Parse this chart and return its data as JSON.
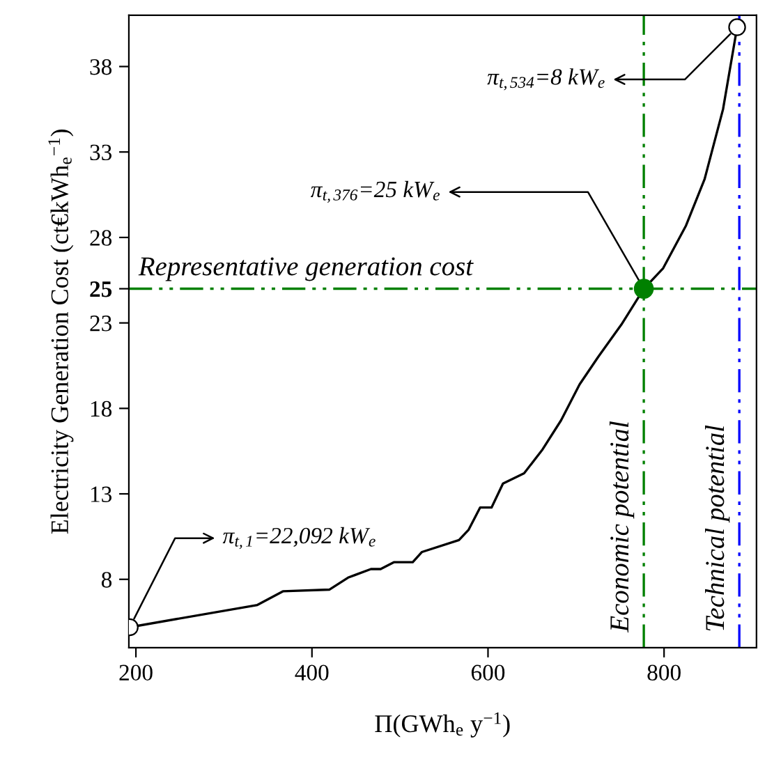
{
  "chart_data": {
    "type": "line",
    "xlabel": "Π(GWh$_{e}$ y$^{−1}$)",
    "ylabel": "Electricity Generation Cost (ct€kWh$_{e}$$^{−1}$)",
    "xlim": [
      192,
      905
    ],
    "xticks": [
      200,
      400,
      600,
      800
    ],
    "ylim": [
      4,
      41
    ],
    "yticks": [
      8,
      13,
      18,
      23,
      25,
      28,
      33,
      38
    ],
    "grid": false,
    "legend": false,
    "series": [
      {
        "color": "#000000",
        "marker": "none",
        "line_style": "solid",
        "x": [
          193,
          338,
          367,
          420,
          441,
          467,
          478,
          493,
          514.5,
          525,
          567,
          578,
          591,
          604,
          617,
          641,
          662,
          683,
          704,
          725,
          751.5,
          777,
          799,
          825,
          846,
          867,
          883
        ],
        "values": [
          5.2,
          6.5,
          7.3,
          7.4,
          8.1,
          8.6,
          8.6,
          9.0,
          9.0,
          9.6,
          10.3,
          10.9,
          12.2,
          12.2,
          13.6,
          14.2,
          15.6,
          17.3,
          19.4,
          21.0,
          22.9,
          25,
          26.2,
          28.7,
          31.4,
          35.5,
          40.3
        ]
      },
      {
        "type": "scatter",
        "color": "#ffffff",
        "marker": "circle",
        "x": [
          193,
          883
        ],
        "values": [
          5.2,
          40.3
        ]
      },
      {
        "type": "scatter",
        "color": "#008000",
        "marker": "circle",
        "x": [
          777
        ],
        "values": [
          25
        ]
      }
    ],
    "ref_lines": [
      {
        "axis": "y",
        "value": 25,
        "label": "Representative generation cost",
        "color": "#008000",
        "line_style": "dashdot"
      },
      {
        "axis": "x",
        "value": 777,
        "label": "Economic potential",
        "color": "#008000",
        "line_style": "dashdot"
      },
      {
        "axis": "x",
        "value": 885.5,
        "label": "Technical potential",
        "color": "#0000ff",
        "line_style": "dashdot"
      }
    ],
    "annotations": [
      {
        "text": "π$_{t,1}$=22,092 kW$_{e}$",
        "x": 193,
        "y": 5.2
      },
      {
        "text": "π$_{t,376}$=25 kW$_{e}$",
        "x": 777,
        "y": 25
      },
      {
        "text": "π$_{t,534}$=8 kW$_{e}$",
        "x": 883,
        "y": 40.3
      }
    ]
  }
}
